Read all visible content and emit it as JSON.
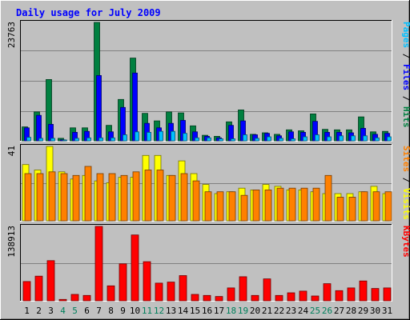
{
  "chart_data": {
    "type": "bar",
    "title": "Daily usage for July 2009",
    "categories": [
      "1",
      "2",
      "3",
      "4",
      "5",
      "6",
      "7",
      "8",
      "9",
      "10",
      "11",
      "12",
      "13",
      "14",
      "15",
      "16",
      "17",
      "18",
      "19",
      "20",
      "21",
      "22",
      "23",
      "24",
      "25",
      "26",
      "27",
      "28",
      "29",
      "30",
      "31"
    ],
    "weekend_days": [
      "4",
      "5",
      "11",
      "12",
      "18",
      "19",
      "25",
      "26"
    ],
    "colors": {
      "background": "#c0c0c0",
      "plot": "#c0c0c0",
      "title": "#0000ff",
      "hits": "#008040",
      "files": "#0000ff",
      "pages": "#00c0ff",
      "visits": "#ffff00",
      "sites": "#ff8000",
      "kbytes": "#ff0000",
      "weekend_label": "#00805c",
      "weekday_label": "#000000"
    },
    "panels": [
      {
        "id": "hits-files-pages",
        "max_label": "23763",
        "ylim": [
          0,
          23763
        ],
        "side_labels": [
          {
            "text": "Pages",
            "color": "#00c0ff"
          },
          {
            "text": " / ",
            "color": "#000000"
          },
          {
            "text": "Files",
            "color": "#0000ff"
          },
          {
            "text": " / ",
            "color": "#000000"
          },
          {
            "text": "Hits",
            "color": "#008040"
          }
        ],
        "series": [
          {
            "name": "Hits",
            "values": [
              2800,
              5800,
              12300,
              500,
              2600,
              2600,
              23763,
              3100,
              8300,
              16600,
              5500,
              4000,
              5800,
              5600,
              3000,
              1100,
              900,
              3800,
              6200,
              1300,
              1600,
              1300,
              2200,
              2000,
              5400,
              2300,
              2200,
              2200,
              4800,
              1800,
              1900
            ]
          },
          {
            "name": "Files",
            "values": [
              2600,
              5100,
              3300,
              200,
              1700,
              1900,
              13100,
              1800,
              6700,
              13600,
              3500,
              2600,
              3500,
              4100,
              1800,
              900,
              600,
              3100,
              4000,
              1200,
              1500,
              1000,
              1800,
              1700,
              3900,
              1700,
              1700,
              1600,
              2500,
              1300,
              1500
            ]
          },
          {
            "name": "Pages",
            "values": [
              700,
              500,
              500,
              100,
              500,
              600,
              600,
              600,
              1200,
              1800,
              1700,
              1900,
              1900,
              1500,
              600,
              600,
              400,
              400,
              1200,
              500,
              800,
              500,
              400,
              800,
              1200,
              800,
              1000,
              1000,
              1000,
              600,
              800
            ]
          }
        ]
      },
      {
        "id": "visits-sites",
        "max_label": "41",
        "ylim": [
          0,
          41
        ],
        "side_labels": [
          {
            "text": "Sites",
            "color": "#ff8000"
          },
          {
            "text": " / ",
            "color": "#000000"
          },
          {
            "text": "Visits",
            "color": "#ffff00"
          }
        ],
        "series": [
          {
            "name": "Visits",
            "values": [
              31,
              28,
              41,
              27,
              23,
              25,
              22,
              21,
              24,
              24,
              36,
              36,
              25,
              33,
              26,
              20,
              15,
              16,
              18,
              17,
              20,
              19,
              17,
              17,
              16,
              15,
              15,
              15,
              16,
              19,
              15
            ]
          },
          {
            "name": "Sites",
            "values": [
              26,
              26,
              27,
              26,
              25,
              30,
              26,
              26,
              25,
              27,
              28,
              28,
              25,
              26,
              22,
              16,
              16,
              16,
              14,
              17,
              17,
              18,
              18,
              18,
              18,
              25,
              13,
              13,
              16,
              16,
              16
            ]
          }
        ]
      },
      {
        "id": "kbytes",
        "max_label": "138913",
        "ylim": [
          0,
          138913
        ],
        "side_labels": [
          {
            "text": "KBytes",
            "color": "#ff0000"
          }
        ],
        "series": [
          {
            "name": "KBytes",
            "values": [
              36000,
              46000,
              75000,
              2500,
              12000,
              10000,
              138913,
              28000,
              69000,
              123000,
              73000,
              33000,
              35000,
              47000,
              12000,
              10000,
              8000,
              24000,
              45000,
              10000,
              41000,
              10000,
              15000,
              18000,
              9000,
              32000,
              19000,
              24000,
              37000,
              23000,
              24000
            ]
          }
        ]
      }
    ]
  }
}
